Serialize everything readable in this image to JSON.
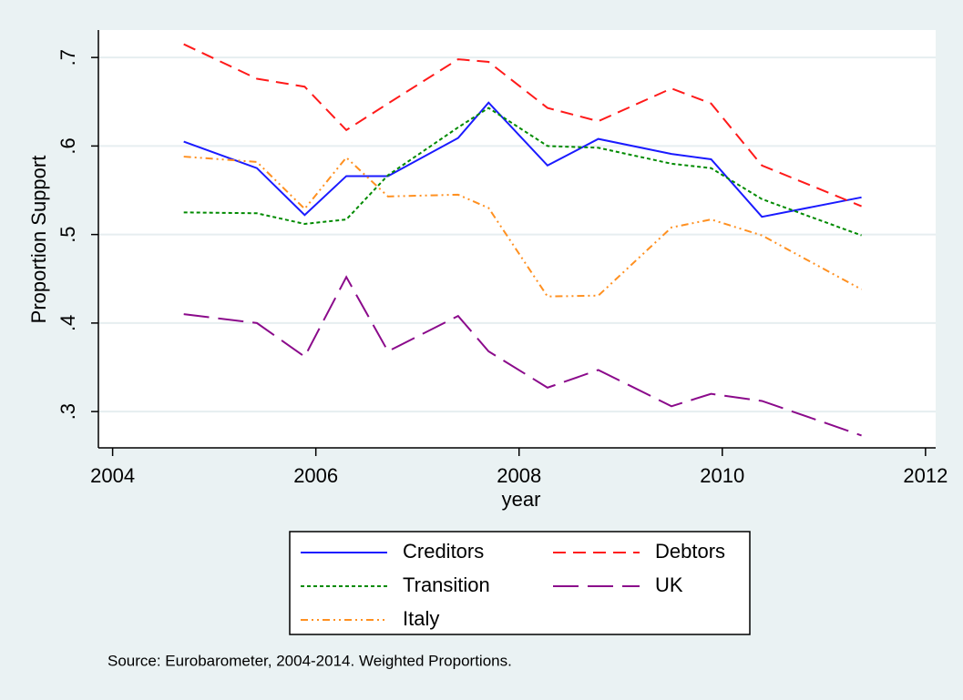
{
  "chart_data": {
    "type": "line",
    "xlabel": "year",
    "ylabel": "Proportion Support",
    "note": "Source: Eurobarometer, 2004-2014. Weighted Proportions.",
    "x": [
      2004.7,
      2005.42,
      2005.89,
      2006.3,
      2006.71,
      2007.4,
      2007.7,
      2008.28,
      2008.78,
      2009.5,
      2009.89,
      2010.39,
      2011.37
    ],
    "series": [
      {
        "name": "Creditors",
        "color": "#1a1aff",
        "dash": "none",
        "values": [
          0.605,
          0.575,
          0.522,
          0.566,
          0.566,
          0.609,
          0.649,
          0.578,
          0.608,
          0.591,
          0.585,
          0.52,
          0.542
        ]
      },
      {
        "name": "Debtors",
        "color": "#ff1a1a",
        "dash": "14 8",
        "values": [
          0.715,
          0.676,
          0.667,
          0.618,
          0.648,
          0.698,
          0.695,
          0.643,
          0.628,
          0.665,
          0.648,
          0.578,
          0.532
        ]
      },
      {
        "name": "Transition",
        "color": "#008a00",
        "dash": "4 3",
        "values": [
          0.525,
          0.524,
          0.512,
          0.517,
          0.567,
          0.621,
          0.643,
          0.6,
          0.598,
          0.58,
          0.575,
          0.54,
          0.499
        ]
      },
      {
        "name": "UK",
        "color": "#8b0a8b",
        "dash": "28 10",
        "values": [
          0.41,
          0.4,
          0.362,
          0.452,
          0.368,
          0.408,
          0.368,
          0.327,
          0.347,
          0.306,
          0.32,
          0.312,
          0.273
        ]
      },
      {
        "name": "Italy",
        "color": "#ff9020",
        "dash": "8 4 2 4 2 4",
        "values": [
          0.588,
          0.582,
          0.529,
          0.587,
          0.543,
          0.545,
          0.53,
          0.43,
          0.431,
          0.508,
          0.517,
          0.499,
          0.438
        ]
      }
    ],
    "xlim": [
      2003.86,
      2012.1
    ],
    "xticks": [
      2004,
      2006,
      2008,
      2010,
      2012
    ],
    "ylim": [
      0.259,
      0.731
    ],
    "yticks": [
      {
        "value": 0.3,
        "label": ".3"
      },
      {
        "value": 0.4,
        "label": ".4"
      },
      {
        "value": 0.5,
        "label": ".5"
      },
      {
        "value": 0.6,
        "label": ".6"
      },
      {
        "value": 0.7,
        "label": ".7"
      }
    ],
    "grid": true
  }
}
